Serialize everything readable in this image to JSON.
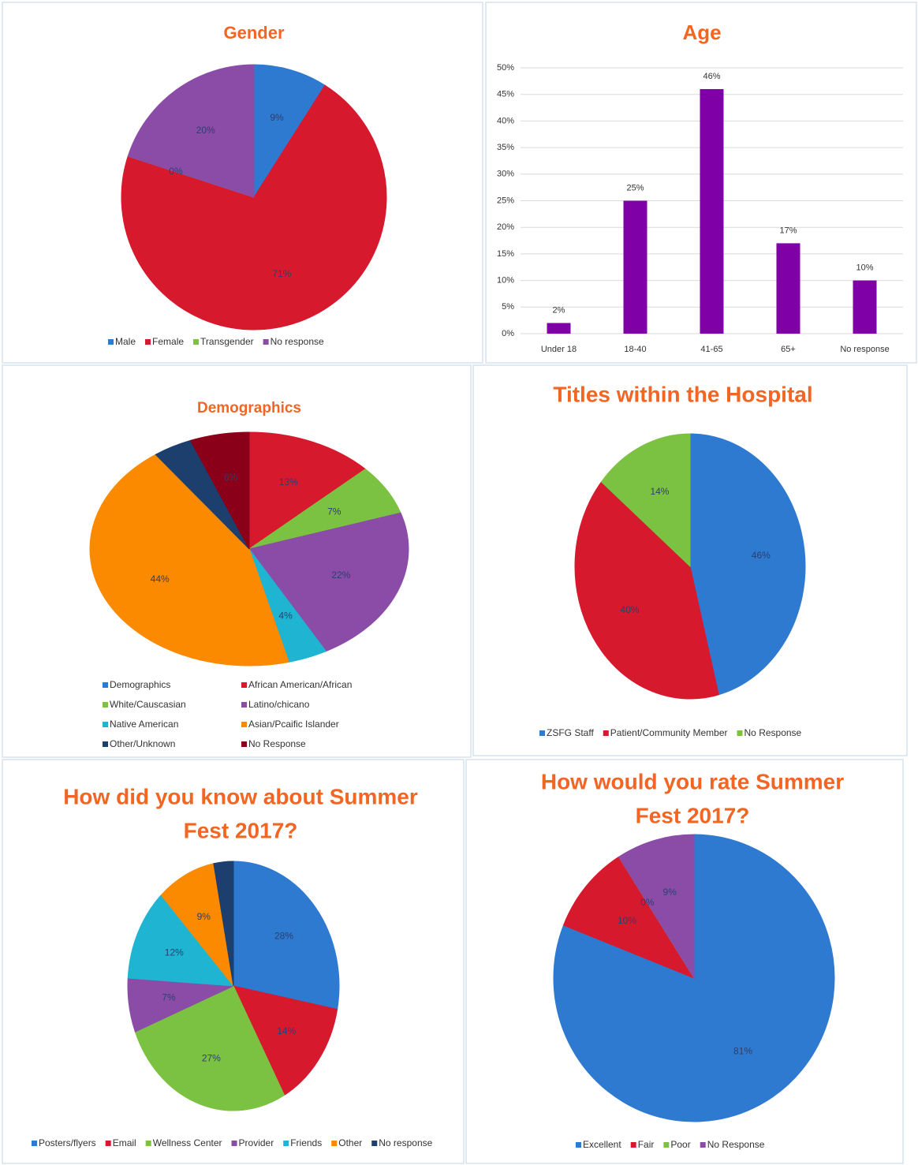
{
  "chart_data": [
    {
      "type": "pie",
      "title": "Gender",
      "categories": [
        "Male",
        "Female",
        "Transgender",
        "No response"
      ],
      "values": [
        9,
        71,
        0,
        20
      ],
      "value_labels": [
        "9%",
        "71%",
        "0%",
        "20%"
      ],
      "colors": [
        "#2f7ad1",
        "#d7192e",
        "#7cc242",
        "#8b4ca8"
      ]
    },
    {
      "type": "bar",
      "title": "Age",
      "categories": [
        "Under 18",
        "18-40",
        "41-65",
        "65+",
        "No response"
      ],
      "values": [
        2,
        25,
        46,
        17,
        10
      ],
      "value_labels": [
        "2%",
        "25%",
        "46%",
        "17%",
        "10%"
      ],
      "color": "#7f00a6",
      "ylim": [
        0,
        50
      ],
      "yticks": [
        {
          "value": 0,
          "label": "0%"
        },
        {
          "value": 5,
          "label": "5%"
        },
        {
          "value": 10,
          "label": "10%"
        },
        {
          "value": 15,
          "label": "15%"
        },
        {
          "value": 20,
          "label": "20%"
        },
        {
          "value": 25,
          "label": "25%"
        },
        {
          "value": 30,
          "label": "30%"
        },
        {
          "value": 35,
          "label": "35%"
        },
        {
          "value": 40,
          "label": "40%"
        },
        {
          "value": 45,
          "label": "45%"
        },
        {
          "value": 50,
          "label": "50%"
        }
      ],
      "grid": true
    },
    {
      "type": "pie",
      "title": "Demographics",
      "categories": [
        "Demographics",
        "African American/African",
        "White/Causcasian",
        "Latino/chicano",
        "Native American",
        "Asian/Pcaific Islander",
        "Other/Unknown",
        "No Response"
      ],
      "values": [
        0,
        13,
        7,
        22,
        4,
        44,
        4,
        6
      ],
      "value_labels": [
        null,
        "13%",
        "7%",
        "22%",
        "4%",
        "44%",
        null,
        "6%"
      ],
      "colors": [
        "#2f7ad1",
        "#d7192e",
        "#7cc242",
        "#8b4ca8",
        "#1eb4d2",
        "#fb8a00",
        "#1c3f6e",
        "#8b0018"
      ]
    },
    {
      "type": "pie",
      "title": "Titles within the Hospital",
      "categories": [
        "ZSFG Staff",
        "Patient/Community Member",
        "No Response"
      ],
      "values": [
        46,
        40,
        14
      ],
      "value_labels": [
        "46%",
        "40%",
        "14%"
      ],
      "colors": [
        "#2f7ad1",
        "#d7192e",
        "#7cc242"
      ]
    },
    {
      "type": "pie",
      "title": [
        "How did you know about Summer",
        "Fest 2017?"
      ],
      "categories": [
        "Posters/flyers",
        "Email",
        "Wellness Center",
        "Provider",
        "Friends",
        "Other",
        "No response"
      ],
      "values": [
        28,
        14,
        27,
        7,
        12,
        9,
        3
      ],
      "value_labels": [
        "28%",
        "14%",
        "27%",
        "7%",
        "12%",
        "9%",
        null
      ],
      "colors": [
        "#2f7ad1",
        "#d7192e",
        "#7cc242",
        "#8b4ca8",
        "#1eb4d2",
        "#fb8a00",
        "#1c3f6e"
      ]
    },
    {
      "type": "pie",
      "title": [
        "How would you rate Summer",
        "Fest 2017?"
      ],
      "categories": [
        "Excellent",
        "Fair",
        "Poor",
        "No Response"
      ],
      "values": [
        81,
        10,
        0,
        9
      ],
      "value_labels": [
        "81%",
        "10%",
        "0%",
        "9%"
      ],
      "colors": [
        "#2f7ad1",
        "#d7192e",
        "#7cc242",
        "#8b4ca8"
      ]
    }
  ]
}
